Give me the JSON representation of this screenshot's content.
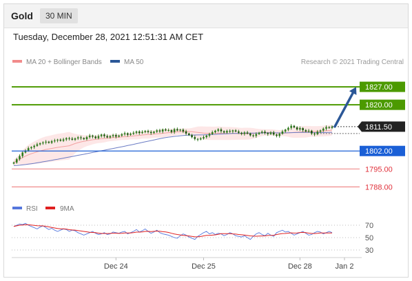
{
  "header": {
    "title": "Gold",
    "timeframe": "30 MIN"
  },
  "timestamp": "Tuesday, December 28, 2021 12:51:31 AM CET",
  "legend": {
    "ma_bb": "MA 20 + Bollinger Bands",
    "ma50": "MA 50",
    "credit": "Research © 2021 Trading Central"
  },
  "rsi_legend": {
    "rsi": "RSI",
    "ma9": "9MA"
  },
  "colors": {
    "resistance": "#4c9a00",
    "support": "#1a5fd6",
    "last_price": "#222222",
    "lower_levels": "#f08a8a",
    "lower_text": "#e0303a",
    "arrow": "#2b5797",
    "bb_fill": "#fde7e7",
    "ma20": "#f2a0a0",
    "ma50": "#6b7cc4",
    "candle": "#2d7a1d",
    "rsi_line": "#5577dd",
    "rsi_ma": "#e02020"
  },
  "chart_data": {
    "type": "candlestick",
    "price_axis_range": [
      1783,
      1834
    ],
    "levels": [
      {
        "label": "1827.00",
        "value": 1827.0,
        "kind": "resistance"
      },
      {
        "label": "1820.00",
        "value": 1820.0,
        "kind": "resistance"
      },
      {
        "label": "1811.50",
        "value": 1811.5,
        "kind": "last"
      },
      {
        "label": "1802.00",
        "value": 1802.0,
        "kind": "support"
      },
      {
        "label": "1795.00",
        "value": 1795.0,
        "kind": "lower"
      },
      {
        "label": "1788.00",
        "value": 1788.0,
        "kind": "lower"
      }
    ],
    "x_ticks": [
      "Dec 24",
      "Dec 25",
      "Dec 28",
      "Jan 2"
    ],
    "x_tick_index": [
      35,
      65,
      98,
      116
    ],
    "close": [
      1797.5,
      1798.8,
      1800.0,
      1801.4,
      1802.2,
      1803.1,
      1803.5,
      1804.0,
      1804.6,
      1805.0,
      1805.3,
      1805.6,
      1805.2,
      1805.8,
      1806.1,
      1806.4,
      1806.0,
      1806.5,
      1807.0,
      1806.8,
      1806.4,
      1806.9,
      1807.3,
      1807.0,
      1806.6,
      1807.4,
      1808.0,
      1807.6,
      1807.0,
      1807.8,
      1808.4,
      1807.8,
      1807.3,
      1807.8,
      1808.2,
      1807.6,
      1808.0,
      1808.5,
      1808.9,
      1808.3,
      1808.7,
      1809.1,
      1809.6,
      1809.0,
      1809.4,
      1809.8,
      1809.4,
      1809.0,
      1809.5,
      1810.0,
      1809.6,
      1810.4,
      1810.0,
      1810.1,
      1809.4,
      1810.5,
      1810.0,
      1810.3,
      1809.6,
      1808.8,
      1808.2,
      1807.4,
      1806.7,
      1806.5,
      1806.9,
      1807.4,
      1808.0,
      1808.6,
      1809.3,
      1809.9,
      1810.4,
      1809.7,
      1809.2,
      1809.8,
      1809.6,
      1810.0,
      1809.6,
      1809.1,
      1808.7,
      1809.2,
      1808.8,
      1808.1,
      1807.9,
      1808.6,
      1809.1,
      1809.5,
      1809.0,
      1808.6,
      1809.2,
      1808.4,
      1807.9,
      1808.7,
      1809.6,
      1810.3,
      1811.0,
      1811.8,
      1811.2,
      1810.4,
      1810.9,
      1810.1,
      1809.6,
      1809.9,
      1808.8,
      1808.5,
      1809.5,
      1810.0,
      1810.7,
      1811.3,
      1811.0,
      1811.5
    ],
    "rsi": [
      68,
      70,
      72,
      71,
      73,
      70,
      68,
      66,
      64,
      67,
      69,
      66,
      63,
      65,
      62,
      60,
      62,
      64,
      63,
      60,
      62,
      61,
      58,
      56,
      54,
      56,
      58,
      60,
      57,
      55,
      56,
      58,
      55,
      56,
      59,
      58,
      57,
      59,
      60,
      56,
      58,
      60,
      63,
      59,
      61,
      64,
      60,
      57,
      59,
      62,
      58,
      56,
      55,
      54,
      52,
      50,
      49,
      53,
      56,
      54,
      51,
      49,
      47,
      52,
      55,
      58,
      60,
      56,
      58,
      55,
      57,
      56,
      53,
      55,
      58,
      56,
      53,
      52,
      51,
      53,
      50,
      47,
      52,
      56,
      58,
      55,
      53,
      57,
      54,
      52,
      58,
      60,
      62,
      59,
      60,
      57,
      54,
      56,
      58,
      60,
      57,
      54,
      55,
      58,
      60,
      59,
      56,
      58,
      60,
      58
    ],
    "rsi_axis_ticks": [
      "70",
      "50",
      "30"
    ],
    "rsi_tick_values": [
      70,
      50,
      30
    ]
  }
}
